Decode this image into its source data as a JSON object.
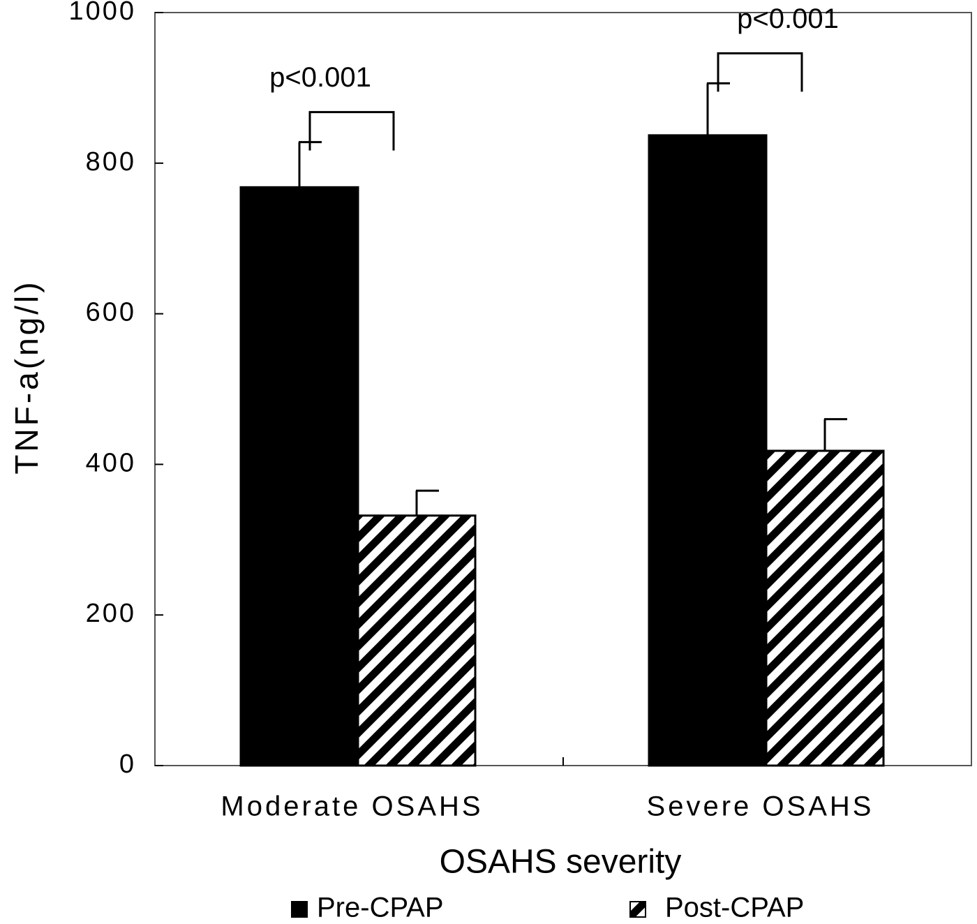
{
  "chart_data": {
    "type": "bar",
    "y_label": "TNF-a(ng/l)",
    "x_label": "OSAHS severity",
    "categories": [
      "Moderate OSAHS",
      "Severe OSAHS"
    ],
    "series": [
      {
        "name": "Pre-CPAP",
        "color": "#000000",
        "hatch": false,
        "values": [
          768,
          837
        ],
        "errors": [
          60,
          69
        ]
      },
      {
        "name": "Post-CPAP",
        "color": "#000000",
        "hatch": true,
        "values": [
          332,
          418
        ],
        "errors": [
          33,
          42
        ]
      }
    ],
    "annotations": [
      "p<0.001",
      "p<0.001"
    ],
    "ylim": [
      0,
      1000
    ],
    "yticks": [
      0,
      200,
      400,
      600,
      800,
      1000
    ],
    "legend": "bottom"
  }
}
